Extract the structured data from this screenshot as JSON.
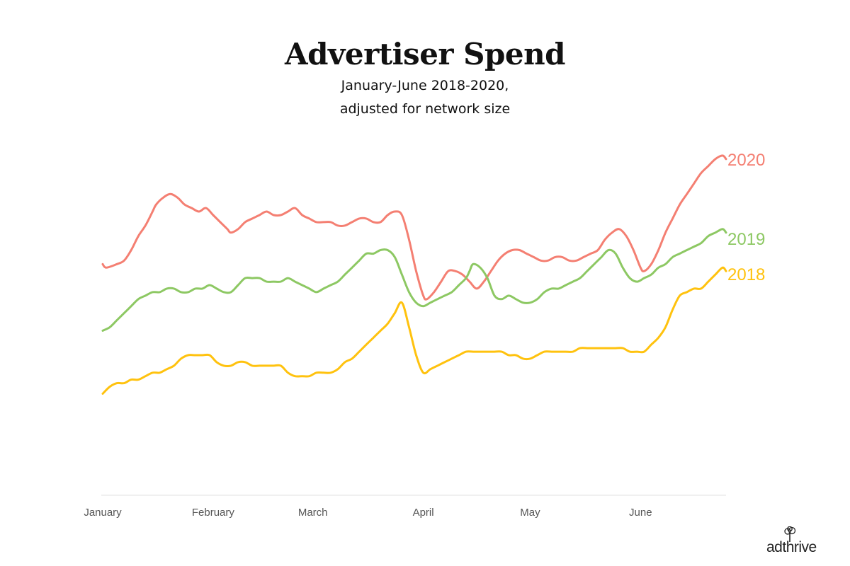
{
  "header": {
    "title": "Advertiser Spend",
    "subtitle_line1": "January-June 2018-2020,",
    "subtitle_line2": "adjusted for network size"
  },
  "logo": {
    "text": "adthrive",
    "icon": "tree-icon"
  },
  "chart_data": {
    "type": "line",
    "title": "Advertiser Spend",
    "subtitle": "January-June 2018-2020, adjusted for network size",
    "xlabel": "",
    "ylabel": "",
    "x_ticks": [
      "January",
      "February",
      "March",
      "April",
      "May",
      "June"
    ],
    "x_tick_positions": [
      0,
      31,
      59,
      90,
      120,
      151
    ],
    "xlim": [
      0,
      175
    ],
    "ylim": [
      0,
      100
    ],
    "grid": false,
    "legend": "inline labels at line ends",
    "series": [
      {
        "name": "2020",
        "color": "#F47F72",
        "points": [
          [
            0,
            66
          ],
          [
            1,
            65
          ],
          [
            4,
            66
          ],
          [
            6,
            67
          ],
          [
            8,
            70
          ],
          [
            10,
            74
          ],
          [
            12,
            77
          ],
          [
            14,
            81
          ],
          [
            15,
            83
          ],
          [
            17,
            85
          ],
          [
            19,
            86
          ],
          [
            21,
            85
          ],
          [
            23,
            83
          ],
          [
            25,
            82
          ],
          [
            27,
            81
          ],
          [
            29,
            82
          ],
          [
            31,
            80
          ],
          [
            33,
            78
          ],
          [
            35,
            76
          ],
          [
            36,
            75
          ],
          [
            38,
            76
          ],
          [
            40,
            78
          ],
          [
            42,
            79
          ],
          [
            44,
            80
          ],
          [
            46,
            81
          ],
          [
            48,
            80
          ],
          [
            50,
            80
          ],
          [
            52,
            81
          ],
          [
            54,
            82
          ],
          [
            56,
            80
          ],
          [
            58,
            79
          ],
          [
            60,
            78
          ],
          [
            62,
            78
          ],
          [
            64,
            78
          ],
          [
            66,
            77
          ],
          [
            68,
            77
          ],
          [
            70,
            78
          ],
          [
            72,
            79
          ],
          [
            74,
            79
          ],
          [
            76,
            78
          ],
          [
            78,
            78
          ],
          [
            80,
            80
          ],
          [
            82,
            81
          ],
          [
            84,
            80
          ],
          [
            86,
            73
          ],
          [
            88,
            64
          ],
          [
            90,
            57
          ],
          [
            91,
            56
          ],
          [
            93,
            58
          ],
          [
            95,
            61
          ],
          [
            97,
            64
          ],
          [
            99,
            64
          ],
          [
            101,
            63
          ],
          [
            103,
            61
          ],
          [
            105,
            59
          ],
          [
            107,
            61
          ],
          [
            109,
            64
          ],
          [
            111,
            67
          ],
          [
            113,
            69
          ],
          [
            115,
            70
          ],
          [
            117,
            70
          ],
          [
            119,
            69
          ],
          [
            121,
            68
          ],
          [
            123,
            67
          ],
          [
            125,
            67
          ],
          [
            127,
            68
          ],
          [
            129,
            68
          ],
          [
            131,
            67
          ],
          [
            133,
            67
          ],
          [
            135,
            68
          ],
          [
            137,
            69
          ],
          [
            139,
            70
          ],
          [
            141,
            73
          ],
          [
            143,
            75
          ],
          [
            145,
            76
          ],
          [
            147,
            74
          ],
          [
            149,
            70
          ],
          [
            151,
            65
          ],
          [
            152,
            64
          ],
          [
            154,
            66
          ],
          [
            156,
            70
          ],
          [
            158,
            75
          ],
          [
            160,
            79
          ],
          [
            162,
            83
          ],
          [
            164,
            86
          ],
          [
            166,
            89
          ],
          [
            168,
            92
          ],
          [
            170,
            94
          ],
          [
            172,
            96
          ],
          [
            174,
            97
          ],
          [
            175,
            96
          ]
        ],
        "end_label": "2020"
      },
      {
        "name": "2019",
        "color": "#8DC863",
        "points": [
          [
            0,
            47
          ],
          [
            2,
            48
          ],
          [
            4,
            50
          ],
          [
            6,
            52
          ],
          [
            8,
            54
          ],
          [
            10,
            56
          ],
          [
            12,
            57
          ],
          [
            14,
            58
          ],
          [
            16,
            58
          ],
          [
            18,
            59
          ],
          [
            20,
            59
          ],
          [
            22,
            58
          ],
          [
            24,
            58
          ],
          [
            26,
            59
          ],
          [
            28,
            59
          ],
          [
            30,
            60
          ],
          [
            32,
            59
          ],
          [
            34,
            58
          ],
          [
            36,
            58
          ],
          [
            38,
            60
          ],
          [
            40,
            62
          ],
          [
            42,
            62
          ],
          [
            44,
            62
          ],
          [
            46,
            61
          ],
          [
            48,
            61
          ],
          [
            50,
            61
          ],
          [
            52,
            62
          ],
          [
            54,
            61
          ],
          [
            56,
            60
          ],
          [
            58,
            59
          ],
          [
            60,
            58
          ],
          [
            62,
            59
          ],
          [
            64,
            60
          ],
          [
            66,
            61
          ],
          [
            68,
            63
          ],
          [
            70,
            65
          ],
          [
            72,
            67
          ],
          [
            74,
            69
          ],
          [
            76,
            69
          ],
          [
            78,
            70
          ],
          [
            80,
            70
          ],
          [
            82,
            68
          ],
          [
            84,
            63
          ],
          [
            86,
            58
          ],
          [
            88,
            55
          ],
          [
            90,
            54
          ],
          [
            92,
            55
          ],
          [
            94,
            56
          ],
          [
            96,
            57
          ],
          [
            98,
            58
          ],
          [
            100,
            60
          ],
          [
            102,
            62
          ],
          [
            103,
            64
          ],
          [
            104,
            66
          ],
          [
            106,
            65
          ],
          [
            108,
            62
          ],
          [
            110,
            57
          ],
          [
            112,
            56
          ],
          [
            114,
            57
          ],
          [
            116,
            56
          ],
          [
            118,
            55
          ],
          [
            120,
            55
          ],
          [
            122,
            56
          ],
          [
            124,
            58
          ],
          [
            126,
            59
          ],
          [
            128,
            59
          ],
          [
            130,
            60
          ],
          [
            132,
            61
          ],
          [
            134,
            62
          ],
          [
            136,
            64
          ],
          [
            138,
            66
          ],
          [
            140,
            68
          ],
          [
            142,
            70
          ],
          [
            144,
            69
          ],
          [
            146,
            65
          ],
          [
            148,
            62
          ],
          [
            150,
            61
          ],
          [
            152,
            62
          ],
          [
            154,
            63
          ],
          [
            156,
            65
          ],
          [
            158,
            66
          ],
          [
            160,
            68
          ],
          [
            162,
            69
          ],
          [
            164,
            70
          ],
          [
            166,
            71
          ],
          [
            168,
            72
          ],
          [
            170,
            74
          ],
          [
            172,
            75
          ],
          [
            174,
            76
          ],
          [
            175,
            75
          ]
        ],
        "end_label": "2019"
      },
      {
        "name": "2018",
        "color": "#FFC20E",
        "points": [
          [
            0,
            29
          ],
          [
            2,
            31
          ],
          [
            4,
            32
          ],
          [
            6,
            32
          ],
          [
            8,
            33
          ],
          [
            10,
            33
          ],
          [
            12,
            34
          ],
          [
            14,
            35
          ],
          [
            16,
            35
          ],
          [
            18,
            36
          ],
          [
            20,
            37
          ],
          [
            22,
            39
          ],
          [
            24,
            40
          ],
          [
            26,
            40
          ],
          [
            28,
            40
          ],
          [
            30,
            40
          ],
          [
            32,
            38
          ],
          [
            34,
            37
          ],
          [
            36,
            37
          ],
          [
            38,
            38
          ],
          [
            40,
            38
          ],
          [
            42,
            37
          ],
          [
            44,
            37
          ],
          [
            46,
            37
          ],
          [
            48,
            37
          ],
          [
            50,
            37
          ],
          [
            52,
            35
          ],
          [
            54,
            34
          ],
          [
            56,
            34
          ],
          [
            58,
            34
          ],
          [
            60,
            35
          ],
          [
            62,
            35
          ],
          [
            64,
            35
          ],
          [
            66,
            36
          ],
          [
            68,
            38
          ],
          [
            70,
            39
          ],
          [
            72,
            41
          ],
          [
            74,
            43
          ],
          [
            76,
            45
          ],
          [
            78,
            47
          ],
          [
            80,
            49
          ],
          [
            82,
            52
          ],
          [
            84,
            55
          ],
          [
            86,
            48
          ],
          [
            88,
            40
          ],
          [
            90,
            35
          ],
          [
            92,
            36
          ],
          [
            94,
            37
          ],
          [
            96,
            38
          ],
          [
            98,
            39
          ],
          [
            100,
            40
          ],
          [
            102,
            41
          ],
          [
            104,
            41
          ],
          [
            106,
            41
          ],
          [
            108,
            41
          ],
          [
            110,
            41
          ],
          [
            112,
            41
          ],
          [
            114,
            40
          ],
          [
            116,
            40
          ],
          [
            118,
            39
          ],
          [
            120,
            39
          ],
          [
            122,
            40
          ],
          [
            124,
            41
          ],
          [
            126,
            41
          ],
          [
            128,
            41
          ],
          [
            130,
            41
          ],
          [
            132,
            41
          ],
          [
            134,
            42
          ],
          [
            136,
            42
          ],
          [
            138,
            42
          ],
          [
            140,
            42
          ],
          [
            142,
            42
          ],
          [
            144,
            42
          ],
          [
            146,
            42
          ],
          [
            148,
            41
          ],
          [
            150,
            41
          ],
          [
            152,
            41
          ],
          [
            154,
            43
          ],
          [
            156,
            45
          ],
          [
            158,
            48
          ],
          [
            160,
            53
          ],
          [
            162,
            57
          ],
          [
            164,
            58
          ],
          [
            166,
            59
          ],
          [
            168,
            59
          ],
          [
            170,
            61
          ],
          [
            172,
            63
          ],
          [
            174,
            65
          ],
          [
            175,
            64
          ]
        ],
        "end_label": "2018"
      }
    ]
  }
}
